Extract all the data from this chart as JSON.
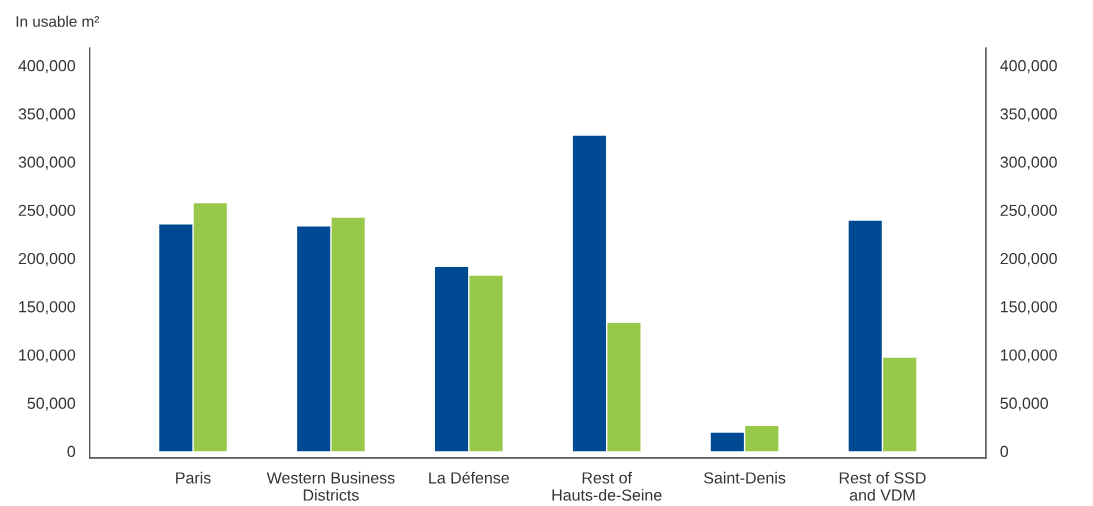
{
  "chart_data": {
    "type": "bar",
    "ylabel": "In usable m²",
    "categories": [
      "Paris",
      "Western Business\nDistricts",
      "La Défense",
      "Rest of\nHauts-de-Seine",
      "Saint-Denis",
      "Rest of SSD\nand VDM"
    ],
    "series": [
      {
        "color": "#004a94",
        "values": [
          235000,
          233000,
          191000,
          327000,
          19000,
          239000
        ]
      },
      {
        "color": "#98c84a",
        "values": [
          257000,
          242000,
          182000,
          133000,
          26000,
          97000
        ]
      }
    ],
    "ylim": [
      -7000,
      418000
    ],
    "yticks": [
      0,
      {
        "value": 50000,
        "label": "50,000"
      },
      {
        "value": 100000,
        "label": "100,000"
      },
      {
        "value": 150000,
        "label": "150,000"
      },
      {
        "value": 200000,
        "label": "200,000"
      },
      {
        "value": 250000,
        "label": "250,000"
      },
      {
        "value": 300000,
        "label": "300,000"
      },
      {
        "value": 350000,
        "label": "350,000"
      },
      {
        "value": 400000,
        "label": "400,000"
      }
    ],
    "y2lim": [
      -7000,
      418000
    ],
    "y2ticks": [
      0,
      {
        "value": 50000,
        "label": "50,000"
      },
      {
        "value": 100000,
        "label": "100,000"
      },
      {
        "value": 150000,
        "label": "150,000"
      },
      {
        "value": 200000,
        "label": "200,000"
      },
      {
        "value": 250000,
        "label": "250,000"
      },
      {
        "value": 300000,
        "label": "300,000"
      },
      {
        "value": 350000,
        "label": "350,000"
      },
      {
        "value": 400000,
        "label": "400,000"
      }
    ],
    "grid": false,
    "legend": false
  }
}
